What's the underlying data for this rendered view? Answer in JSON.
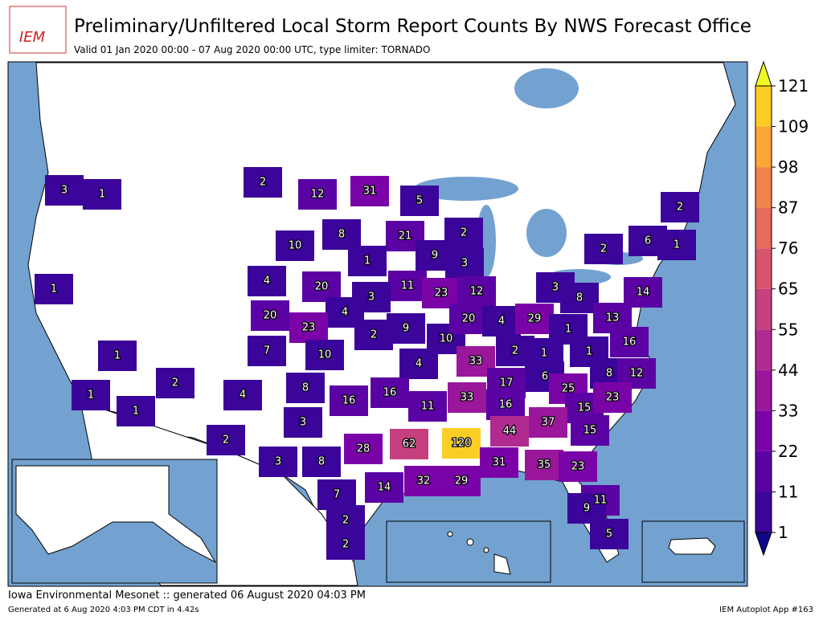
{
  "header": {
    "logo": "IEM",
    "title": "Preliminary/Unfiltered Local Storm Report Counts By NWS Forecast Office",
    "subtitle": "Valid 01 Jan 2020 00:00 - 07 Aug 2020 00:00 UTC, type limiter: TORNADO"
  },
  "map": {
    "counts": [
      3,
      1,
      2,
      12,
      31,
      5,
      10,
      8,
      21,
      2,
      2,
      1,
      9,
      3,
      6,
      2,
      1,
      4,
      20,
      11,
      23,
      12,
      3,
      8,
      14,
      1,
      3,
      4,
      20,
      23,
      2,
      9,
      10,
      20,
      4,
      29,
      13,
      1,
      7,
      10,
      16,
      1,
      33,
      2,
      1,
      1,
      4,
      8,
      12,
      17,
      6,
      25,
      2,
      4,
      8,
      16,
      16,
      33,
      11,
      16,
      15,
      23,
      1,
      1,
      37,
      3,
      15,
      44,
      2,
      62,
      120,
      28,
      3,
      8,
      31,
      35,
      23,
      14,
      32,
      29,
      7,
      11,
      9,
      2,
      5,
      2
    ],
    "colorbar": {
      "ticks": [
        1,
        11,
        22,
        33,
        44,
        55,
        65,
        76,
        87,
        98,
        109,
        121
      ],
      "colors": [
        "#3b049a",
        "#5a02a3",
        "#7a03a8",
        "#9a179b",
        "#b12a90",
        "#c5407e",
        "#d6556d",
        "#e56b5d",
        "#f2844b",
        "#fca636",
        "#fcce25"
      ],
      "under_color": "#0d0887",
      "over_color": "#f0f921"
    }
  },
  "footer": {
    "left": "Iowa Environmental Mesonet :: generated 06 August 2020 04:03 PM",
    "generated": "Generated at 6 Aug 2020 4:03 PM CDT in 4.42s",
    "app": "IEM Autoplot App #163"
  }
}
